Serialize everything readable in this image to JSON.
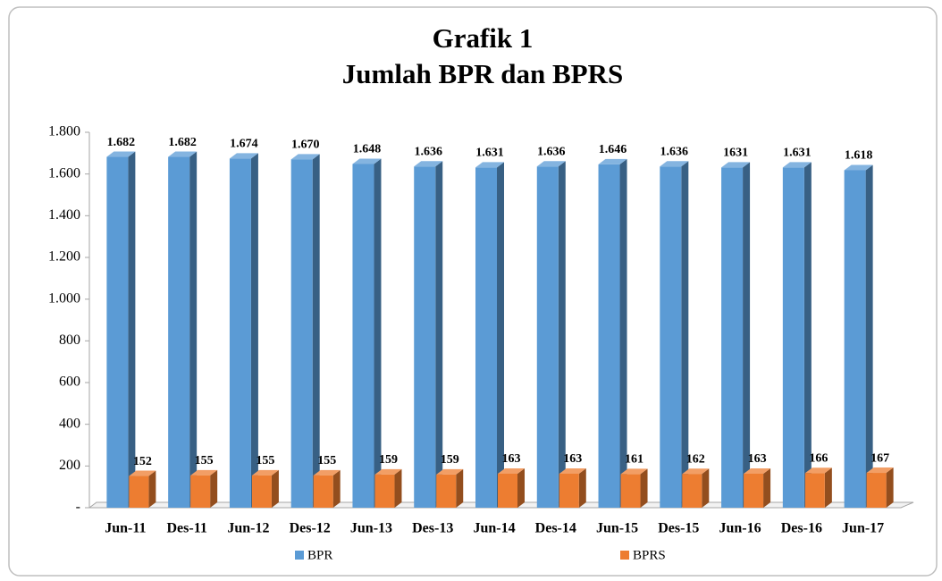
{
  "chart_data": {
    "type": "bar3d",
    "title": "Grafik 1",
    "subtitle": "Jumlah BPR dan BPRS",
    "categories": [
      "Jun-11",
      "Des-11",
      "Jun-12",
      "Des-12",
      "Jun-13",
      "Des-13",
      "Jun-14",
      "Des-14",
      "Jun-15",
      "Des-15",
      "Jun-16",
      "Des-16",
      "Jun-17"
    ],
    "series": [
      {
        "name": "BPR",
        "color": "#5b9bd5",
        "values": [
          1682,
          1682,
          1674,
          1670,
          1648,
          1636,
          1631,
          1636,
          1646,
          1636,
          1631,
          1631,
          1618
        ],
        "value_labels": [
          "1.682",
          "1.682",
          "1.674",
          "1.670",
          "1.648",
          "1.636",
          "1.631",
          "1.636",
          "1.646",
          "1.636",
          "1631",
          "1.631",
          "1.618"
        ]
      },
      {
        "name": "BPRS",
        "color": "#ed7d31",
        "values": [
          152,
          155,
          155,
          155,
          159,
          159,
          163,
          163,
          161,
          162,
          163,
          166,
          167
        ]
      }
    ],
    "ylim": [
      0,
      1800
    ],
    "yticks": [
      {
        "value": 0,
        "label": "-"
      },
      200,
      400,
      600,
      800,
      {
        "value": 1000,
        "label": "1.000"
      },
      {
        "value": 1200,
        "label": "1.200"
      },
      {
        "value": 1400,
        "label": "1.400"
      },
      {
        "value": 1600,
        "label": "1.600"
      },
      {
        "value": 1800,
        "label": "1.800"
      }
    ],
    "legend": "bottom"
  }
}
